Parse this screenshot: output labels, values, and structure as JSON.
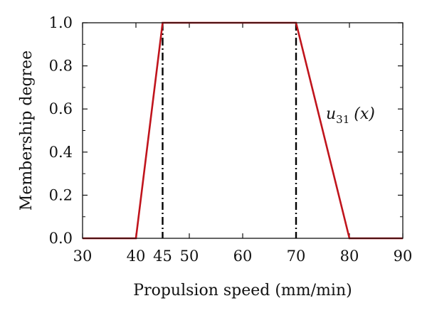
{
  "chart_data": {
    "type": "line",
    "xlabel": "Propulsion speed (mm/min)",
    "ylabel": "Membership degree",
    "xlim": [
      30,
      90
    ],
    "ylim": [
      0,
      1
    ],
    "x_ticks": [
      30,
      40,
      45,
      50,
      60,
      70,
      80,
      90
    ],
    "x_tick_labels": [
      "30",
      "40",
      "45",
      "50",
      "60",
      "70",
      "80",
      "90"
    ],
    "y_ticks": [
      0,
      0.2,
      0.4,
      0.6,
      0.8,
      1.0
    ],
    "y_tick_labels": [
      "0.0",
      "0.2",
      "0.4",
      "0.6",
      "0.8",
      "1.0"
    ],
    "grid": false,
    "series": [
      {
        "x": [
          30,
          40,
          45,
          70,
          80,
          90
        ],
        "y": [
          0,
          0,
          1,
          1,
          0,
          0
        ],
        "color": "#c0141c"
      }
    ],
    "reference_lines": [
      {
        "x": 45,
        "style": "dash-dot",
        "color": "#000000"
      },
      {
        "x": 70,
        "style": "dash-dot",
        "color": "#000000"
      }
    ],
    "annotations": [
      {
        "text": "u",
        "subscript": "31",
        "suffix": "(x)",
        "at": [
          76,
          0.6
        ]
      }
    ]
  }
}
